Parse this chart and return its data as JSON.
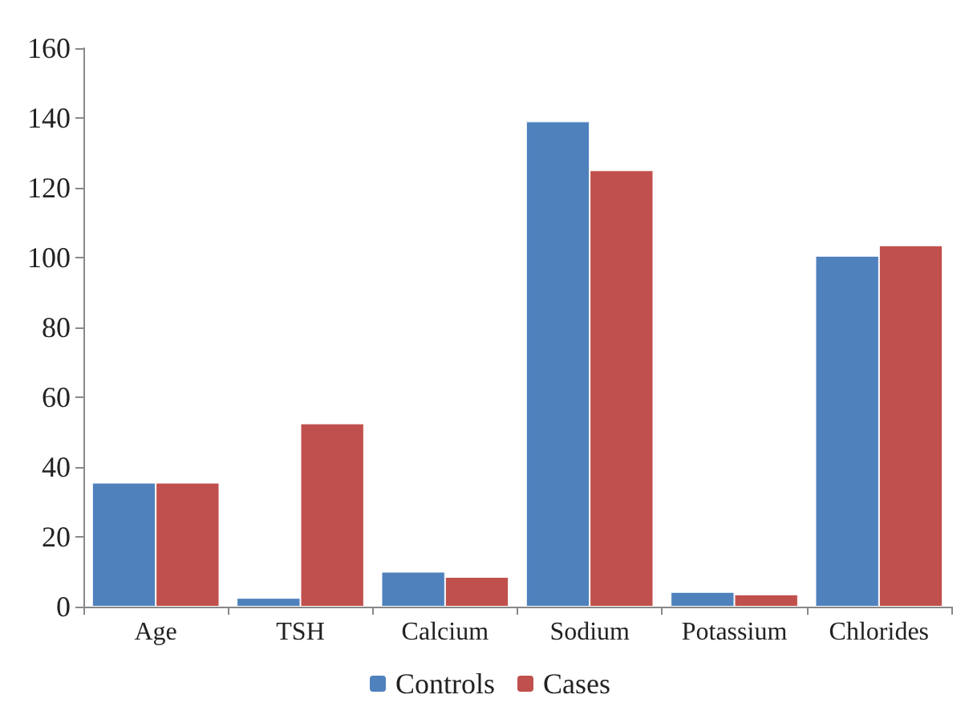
{
  "chart_data": {
    "type": "bar",
    "categories": [
      "Age",
      "TSH",
      "Calcium",
      "Sodium",
      "Potassium",
      "Chlorides"
    ],
    "series": [
      {
        "name": "Controls",
        "color": "#4f81bd",
        "values": [
          35.5,
          2.5,
          10,
          139,
          4.2,
          100.5
        ]
      },
      {
        "name": "Cases",
        "color": "#c0504d",
        "values": [
          35.5,
          52.5,
          8.5,
          125,
          3.5,
          103.5
        ]
      }
    ],
    "ylim": [
      0,
      160
    ],
    "yticks": [
      0,
      20,
      40,
      60,
      80,
      100,
      120,
      140,
      160
    ],
    "grid": false,
    "legend": "bottom"
  }
}
